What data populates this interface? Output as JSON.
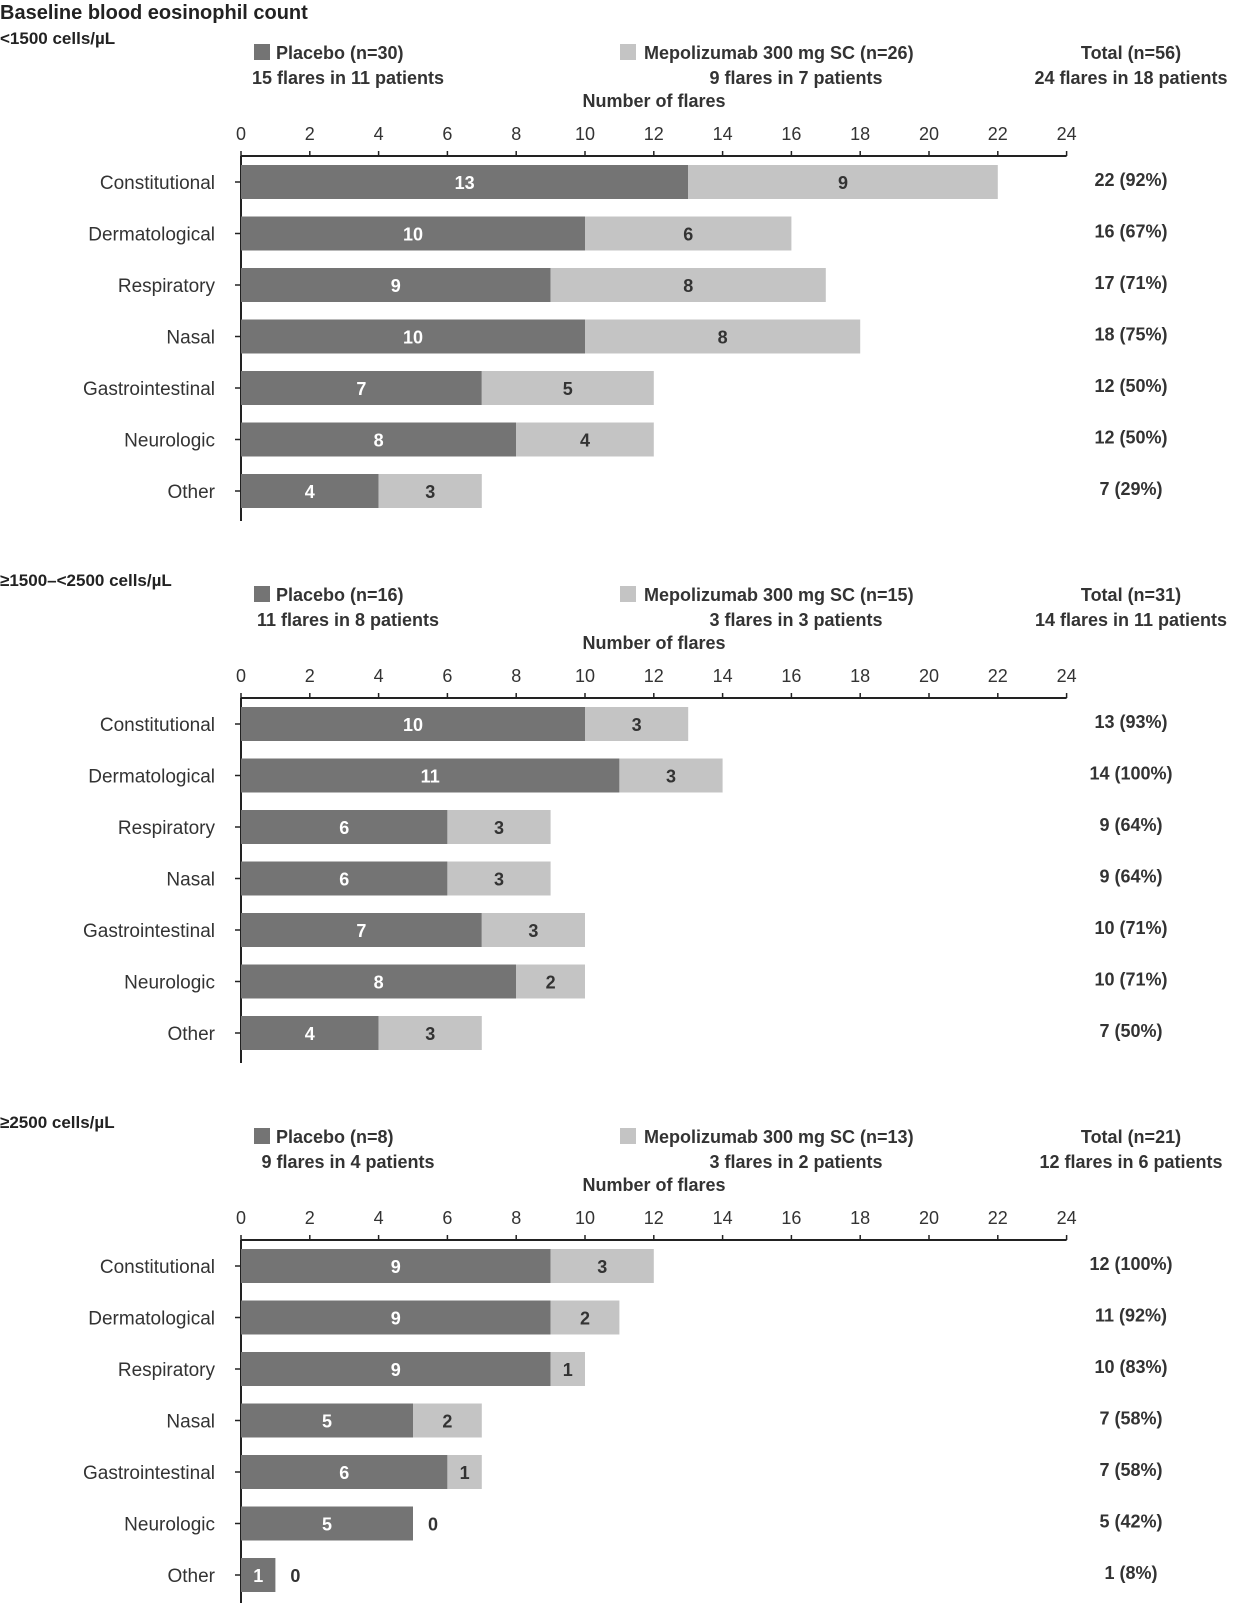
{
  "chart_title": "Baseline blood eosinophil count",
  "colors": {
    "placebo": "#747474",
    "mepolizumab": "#c4c4c4",
    "axis": "#222222",
    "text": "#333333"
  },
  "chart_data": [
    {
      "type": "bar",
      "orientation": "horizontal",
      "stacked": true,
      "subtitle": "<1500 cells/µL",
      "xlabel": "Number of flares",
      "xlim": [
        0,
        24
      ],
      "xticks": [
        0,
        2,
        4,
        6,
        8,
        10,
        12,
        14,
        16,
        18,
        20,
        22,
        24
      ],
      "categories": [
        "Constitutional",
        "Dermatological",
        "Respiratory",
        "Nasal",
        "Gastrointestinal",
        "Neurologic",
        "Other"
      ],
      "series": [
        {
          "name": "Placebo (n=30)",
          "detail": "15 flares in 11 patients",
          "values": [
            13,
            10,
            9,
            10,
            7,
            8,
            4
          ]
        },
        {
          "name": "Mepolizumab 300 mg SC (n=26)",
          "detail": "9 flares in 7 patients",
          "values": [
            9,
            6,
            8,
            8,
            5,
            4,
            3
          ]
        }
      ],
      "total": {
        "name": "Total (n=56)",
        "detail": "24 flares in 18 patients",
        "labels": [
          "22 (92%)",
          "16 (67%)",
          "17 (71%)",
          "18 (75%)",
          "12 (50%)",
          "12 (50%)",
          "7 (29%)"
        ]
      }
    },
    {
      "type": "bar",
      "orientation": "horizontal",
      "stacked": true,
      "subtitle": "≥1500–<2500 cells/µL",
      "xlabel": "Number of flares",
      "xlim": [
        0,
        24
      ],
      "xticks": [
        0,
        2,
        4,
        6,
        8,
        10,
        12,
        14,
        16,
        18,
        20,
        22,
        24
      ],
      "categories": [
        "Constitutional",
        "Dermatological",
        "Respiratory",
        "Nasal",
        "Gastrointestinal",
        "Neurologic",
        "Other"
      ],
      "series": [
        {
          "name": "Placebo (n=16)",
          "detail": "11 flares in 8 patients",
          "values": [
            10,
            11,
            6,
            6,
            7,
            8,
            4
          ]
        },
        {
          "name": "Mepolizumab 300 mg SC (n=15)",
          "detail": "3 flares in 3 patients",
          "values": [
            3,
            3,
            3,
            3,
            3,
            2,
            3
          ]
        }
      ],
      "total": {
        "name": "Total (n=31)",
        "detail": "14 flares in 11 patients",
        "labels": [
          "13 (93%)",
          "14 (100%)",
          "9 (64%)",
          "9 (64%)",
          "10 (71%)",
          "10 (71%)",
          "7 (50%)"
        ]
      }
    },
    {
      "type": "bar",
      "orientation": "horizontal",
      "stacked": true,
      "subtitle": "≥2500 cells/µL",
      "xlabel": "Number of flares",
      "xlim": [
        0,
        24
      ],
      "xticks": [
        0,
        2,
        4,
        6,
        8,
        10,
        12,
        14,
        16,
        18,
        20,
        22,
        24
      ],
      "categories": [
        "Constitutional",
        "Dermatological",
        "Respiratory",
        "Nasal",
        "Gastrointestinal",
        "Neurologic",
        "Other"
      ],
      "series": [
        {
          "name": "Placebo (n=8)",
          "detail": "9 flares in 4 patients",
          "values": [
            9,
            9,
            9,
            5,
            6,
            5,
            1
          ]
        },
        {
          "name": "Mepolizumab 300 mg SC (n=13)",
          "detail": "3 flares in 2 patients",
          "values": [
            3,
            2,
            1,
            2,
            1,
            0,
            0
          ]
        }
      ],
      "total": {
        "name": "Total (n=21)",
        "detail": "12 flares in 6 patients",
        "labels": [
          "12 (100%)",
          "11 (92%)",
          "10 (83%)",
          "7 (58%)",
          "7 (58%)",
          "5 (42%)",
          "1 (8%)"
        ]
      }
    }
  ]
}
